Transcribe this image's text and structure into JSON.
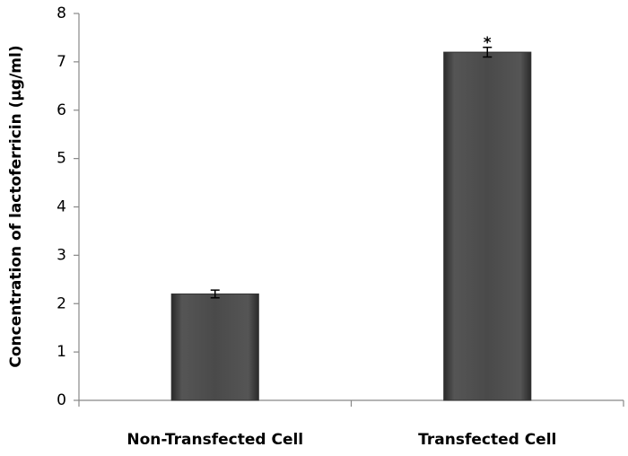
{
  "chart_data": {
    "type": "bar",
    "y_label": "Concentration of lactoferricin  (µg/ml)",
    "categories": [
      "Non-Transfected  Cell",
      "Transfected Cell"
    ],
    "values": [
      2.2,
      7.2
    ],
    "errors": [
      0.08,
      0.1
    ],
    "annotations": [
      "",
      "*"
    ],
    "color": "#4a4a4a",
    "ylim": [
      0,
      8
    ],
    "yticks": [
      0,
      1,
      2,
      3,
      4,
      5,
      6,
      7,
      8
    ],
    "grid": false
  }
}
